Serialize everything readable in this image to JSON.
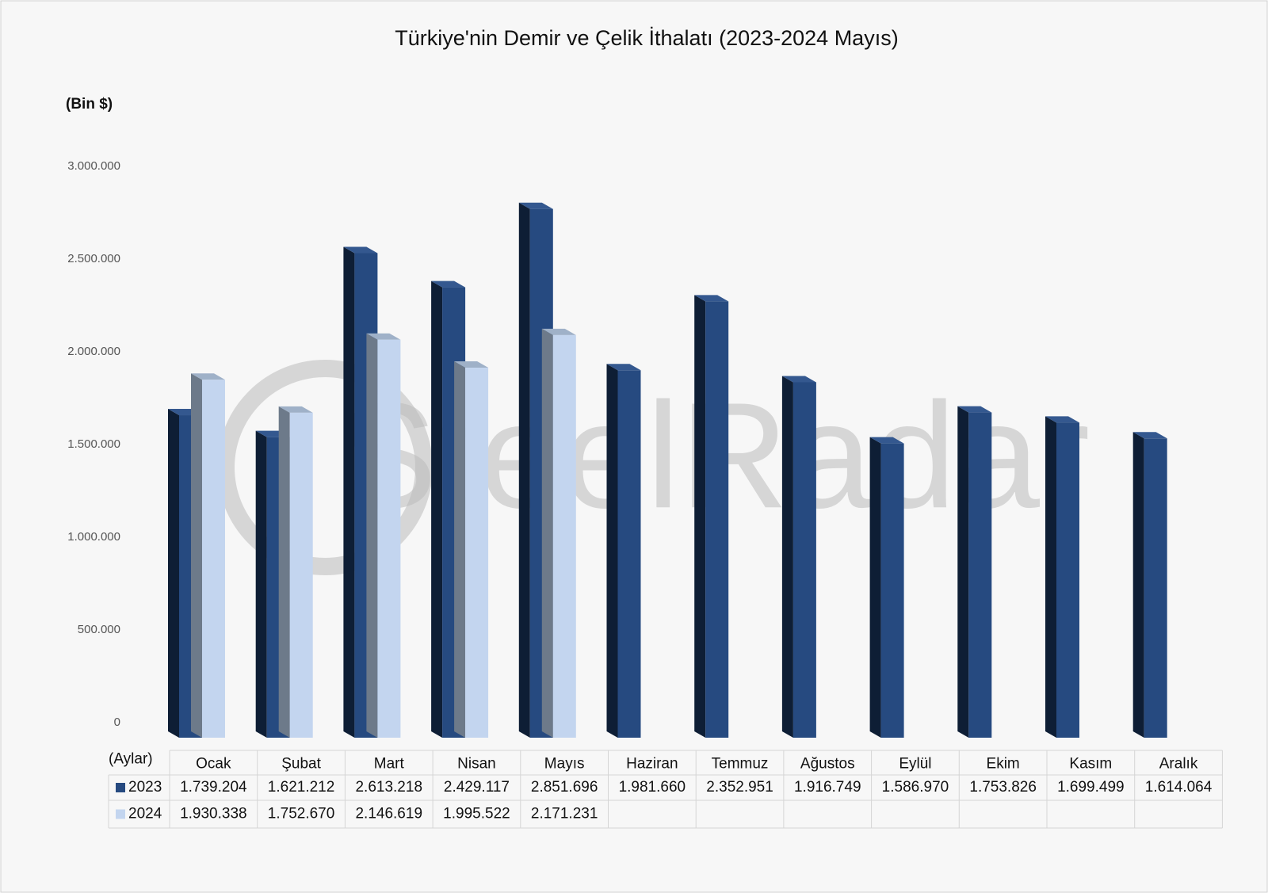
{
  "chart_data": {
    "type": "bar3d",
    "title": "Türkiye'nin Demir ve Çelik İthalatı (2023-2024 Mayıs)",
    "y_label": "(Bin $)",
    "table_header": "(Aylar)",
    "watermark": "SteelRadar",
    "categories": [
      "Ocak",
      "Şubat",
      "Mart",
      "Nisan",
      "Mayıs",
      "Haziran",
      "Temmuz",
      "Ağustos",
      "Eylül",
      "Ekim",
      "Kasım",
      "Aralık"
    ],
    "series": [
      {
        "name": "2023",
        "color": "#264a80",
        "side_color": "#0e1e35",
        "top_color": "#34588f",
        "values": [
          1739204,
          1621212,
          2613218,
          2429117,
          2851696,
          1981660,
          2352951,
          1916749,
          1586970,
          1753826,
          1699499,
          1614064
        ],
        "value_labels": [
          "1.739.204",
          "1.621.212",
          "2.613.218",
          "2.429.117",
          "2.851.696",
          "1.981.660",
          "2.352.951",
          "1.916.749",
          "1.586.970",
          "1.753.826",
          "1.699.499",
          "1.614.064"
        ]
      },
      {
        "name": "2024",
        "color": "#c3d5ef",
        "side_color": "#6d7a8a",
        "top_color": "#9fb1c8",
        "values": [
          1930338,
          1752670,
          2146619,
          1995522,
          2171231,
          null,
          null,
          null,
          null,
          null,
          null,
          null
        ],
        "value_labels": [
          "1.930.338",
          "1.752.670",
          "2.146.619",
          "1.995.522",
          "2.171.231",
          null,
          null,
          null,
          null,
          null,
          null,
          null
        ]
      }
    ],
    "ylim": [
      0,
      3000000
    ],
    "yticks": [
      0,
      {
        "value": 500000,
        "label": "500.000"
      },
      {
        "value": 1000000,
        "label": "1.000.000"
      },
      {
        "value": 1500000,
        "label": "1.500.000"
      },
      {
        "value": 2000000,
        "label": "2.000.000"
      },
      {
        "value": 2500000,
        "label": "2.500.000"
      },
      {
        "value": 3000000,
        "label": "3.000.000"
      }
    ]
  }
}
